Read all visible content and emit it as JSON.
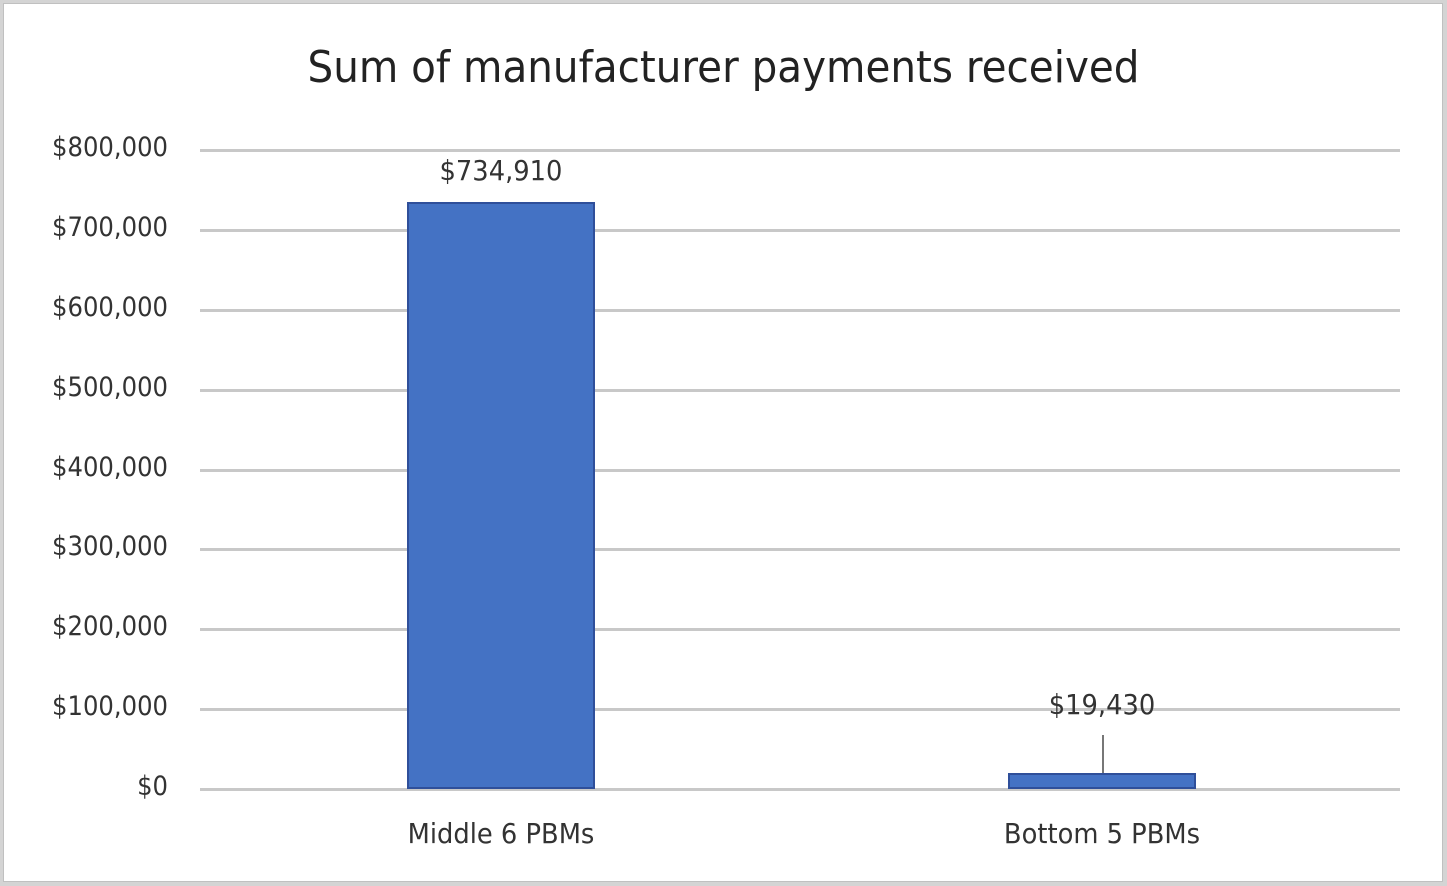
{
  "chart_data": {
    "type": "bar",
    "title": "Sum of manufacturer payments received",
    "categories": [
      "Middle 6 PBMs",
      "Bottom 5 PBMs"
    ],
    "values": [
      734910,
      19430
    ],
    "data_labels": [
      "$734,910",
      "$19,430"
    ],
    "xlabel": "",
    "ylabel": "",
    "ylim": [
      0,
      800000
    ],
    "yticks": [
      "$0",
      "$100,000",
      "$200,000",
      "$300,000",
      "$400,000",
      "$500,000",
      "$600,000",
      "$700,000",
      "$800,000"
    ],
    "grid": true,
    "legend": "none",
    "bar_color": "#4472c4"
  }
}
